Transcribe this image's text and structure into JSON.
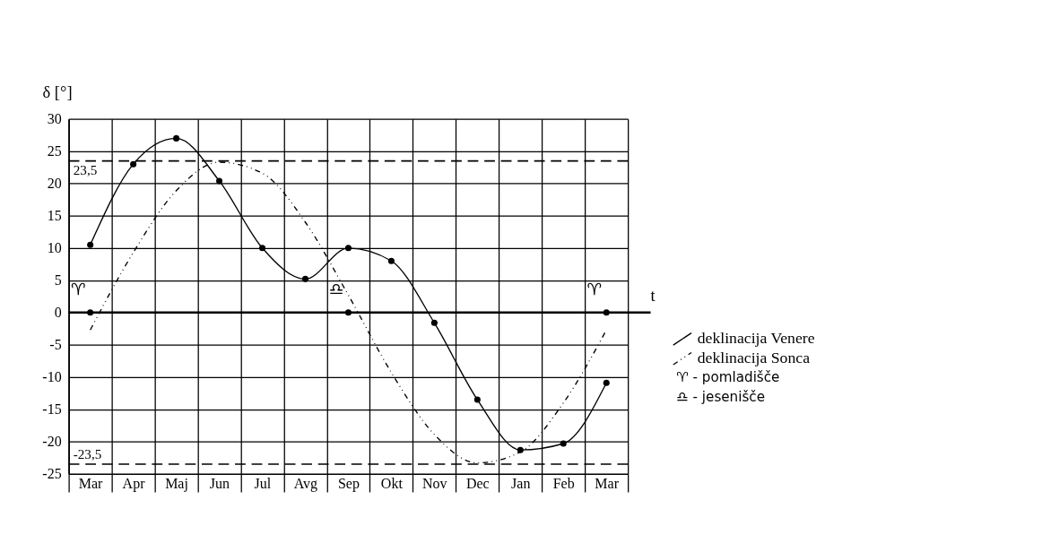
{
  "chart_data": {
    "type": "line",
    "xlabel": "t",
    "ylabel": "δ [°]",
    "categories": [
      "Mar",
      "Apr",
      "Maj",
      "Jun",
      "Jul",
      "Avg",
      "Sep",
      "Okt",
      "Nov",
      "Dec",
      "Jan",
      "Feb",
      "Mar"
    ],
    "ylim": [
      -25,
      30
    ],
    "yticks": [
      -25,
      -20,
      -15,
      -10,
      -5,
      0,
      5,
      10,
      15,
      20,
      25,
      30
    ],
    "grid": true,
    "legend": "right",
    "series": [
      {
        "name": "deklinacija Venere",
        "color": "#000000",
        "line_style": "solid",
        "marker": "circle",
        "values": [
          10.5,
          23,
          27,
          20.4,
          10,
          5.2,
          10,
          8,
          -1.6,
          -13.5,
          -21.3,
          -20.3,
          -10.9
        ]
      },
      {
        "name": "deklinacija Sonca",
        "color": "#000000",
        "line_style": "dashed",
        "marker": "none",
        "values": [
          -2.7,
          9.3,
          18.9,
          23.3,
          21.6,
          14,
          2.7,
          -9.3,
          -18.9,
          -23.3,
          -21.6,
          -14,
          -2.7
        ]
      },
      {
        "type": "scatter",
        "color": "#000000",
        "marker": "circle",
        "values": [
          0,
          null,
          null,
          null,
          null,
          null,
          0,
          null,
          null,
          null,
          null,
          null,
          0
        ],
        "value_labels": [
          "♈",
          null,
          null,
          null,
          null,
          null,
          "♎",
          null,
          null,
          null,
          null,
          null,
          "♈"
        ]
      }
    ],
    "ref_lines": [
      {
        "axis": "y",
        "value": 23.5,
        "label": "23,5",
        "line_style": "dashed",
        "color": "#000000"
      },
      {
        "axis": "y",
        "value": -23.5,
        "label": "-23,5",
        "line_style": "dashed",
        "color": "#000000"
      }
    ],
    "annotations": [
      "♈ - pomladišče",
      "♎ - jesenišče"
    ]
  }
}
